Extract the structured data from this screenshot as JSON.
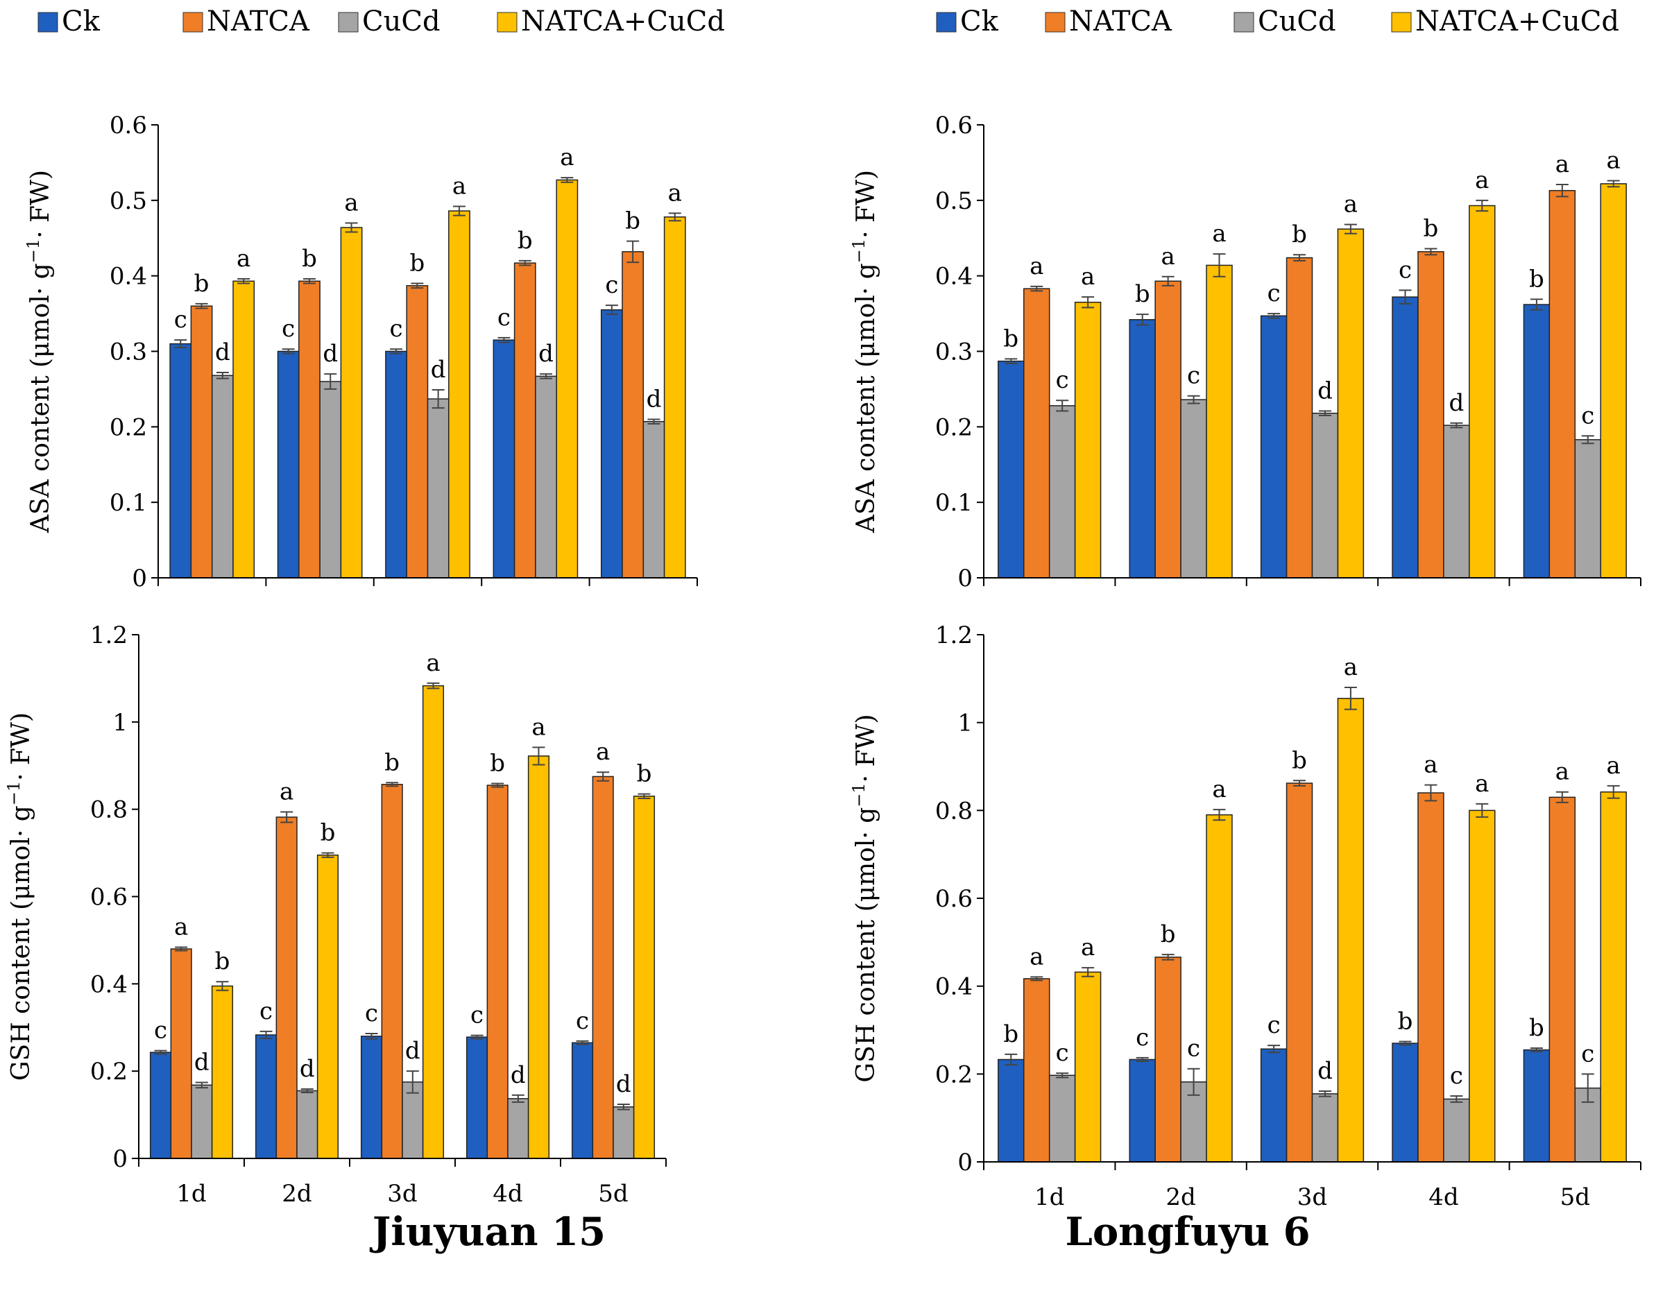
{
  "legend": {
    "items": [
      {
        "label": "Ck",
        "color": "#1f5fbf"
      },
      {
        "label": "NATCA",
        "color": "#f07e26"
      },
      {
        "label": "CuCd",
        "color": "#a5a5a5"
      },
      {
        "label": "NATCA+CuCd",
        "color": "#ffc000"
      }
    ]
  },
  "cultivars": [
    "Jiuyuan 15",
    "Longfuyu 6"
  ],
  "chart_data": [
    {
      "type": "bar",
      "cultivar": "Jiuyuan 15",
      "title": "",
      "xlabel": "",
      "ylabel_parts": [
        "ASA content (μmol· g",
        "−1",
        "· FW)"
      ],
      "ylim": [
        0,
        0.6
      ],
      "yticks": [
        "0",
        "0.1",
        "0.2",
        "0.3",
        "0.4",
        "0.5",
        "0.6"
      ],
      "categories": [
        "1d",
        "2d",
        "3d",
        "4d",
        "5d"
      ],
      "series": [
        {
          "name": "Ck",
          "values": [
            0.31,
            0.3,
            0.3,
            0.315,
            0.355
          ],
          "errors": [
            0.005,
            0.003,
            0.003,
            0.003,
            0.006
          ],
          "letters": [
            "c",
            "c",
            "c",
            "c",
            "c"
          ]
        },
        {
          "name": "NATCA",
          "values": [
            0.36,
            0.393,
            0.387,
            0.417,
            0.432
          ],
          "errors": [
            0.003,
            0.003,
            0.003,
            0.003,
            0.014
          ],
          "letters": [
            "b",
            "b",
            "b",
            "b",
            "b"
          ]
        },
        {
          "name": "CuCd",
          "values": [
            0.268,
            0.26,
            0.237,
            0.267,
            0.207
          ],
          "errors": [
            0.004,
            0.01,
            0.012,
            0.003,
            0.003
          ],
          "letters": [
            "d",
            "d",
            "d",
            "d",
            "d"
          ]
        },
        {
          "name": "NATCA+CuCd",
          "values": [
            0.393,
            0.464,
            0.486,
            0.527,
            0.478
          ],
          "errors": [
            0.003,
            0.006,
            0.006,
            0.003,
            0.005
          ],
          "letters": [
            "a",
            "a",
            "a",
            "a",
            "a"
          ]
        }
      ]
    },
    {
      "type": "bar",
      "cultivar": "Longfuyu 6",
      "title": "",
      "xlabel": "",
      "ylabel_parts": [
        "ASA content (μmol· g",
        "−1",
        "· FW)"
      ],
      "ylim": [
        0,
        0.6
      ],
      "yticks": [
        "0",
        "0.1",
        "0.2",
        "0.3",
        "0.4",
        "0.5",
        "0.6"
      ],
      "categories": [
        "1d",
        "2d",
        "3d",
        "4d",
        "5d"
      ],
      "series": [
        {
          "name": "Ck",
          "values": [
            0.287,
            0.342,
            0.347,
            0.372,
            0.362
          ],
          "errors": [
            0.003,
            0.007,
            0.003,
            0.009,
            0.007
          ],
          "letters": [
            "b",
            "b",
            "c",
            "c",
            "b"
          ]
        },
        {
          "name": "NATCA",
          "values": [
            0.383,
            0.393,
            0.424,
            0.432,
            0.513
          ],
          "errors": [
            0.003,
            0.006,
            0.004,
            0.004,
            0.008
          ],
          "letters": [
            "a",
            "a",
            "b",
            "b",
            "a"
          ]
        },
        {
          "name": "CuCd",
          "values": [
            0.228,
            0.236,
            0.218,
            0.202,
            0.183
          ],
          "errors": [
            0.007,
            0.005,
            0.003,
            0.003,
            0.005
          ],
          "letters": [
            "c",
            "c",
            "d",
            "d",
            "c"
          ]
        },
        {
          "name": "NATCA+CuCd",
          "values": [
            0.365,
            0.414,
            0.462,
            0.493,
            0.522
          ],
          "errors": [
            0.007,
            0.015,
            0.006,
            0.007,
            0.004
          ],
          "letters": [
            "a",
            "a",
            "a",
            "a",
            "a"
          ]
        }
      ]
    },
    {
      "type": "bar",
      "cultivar": "Jiuyuan 15",
      "title": "",
      "xlabel": "",
      "ylabel_parts": [
        "GSH content (μmol· g",
        "−1",
        "· FW)"
      ],
      "ylim": [
        0,
        1.2
      ],
      "yticks": [
        "0",
        "0.2",
        "0.4",
        "0.6",
        "0.8",
        "1",
        "1.2"
      ],
      "categories": [
        "1d",
        "2d",
        "3d",
        "4d",
        "5d"
      ],
      "series": [
        {
          "name": "Ck",
          "values": [
            0.243,
            0.283,
            0.28,
            0.278,
            0.265
          ],
          "errors": [
            0.004,
            0.008,
            0.006,
            0.004,
            0.004
          ],
          "letters": [
            "c",
            "c",
            "c",
            "c",
            "c"
          ]
        },
        {
          "name": "NATCA",
          "values": [
            0.48,
            0.782,
            0.857,
            0.855,
            0.875
          ],
          "errors": [
            0.004,
            0.012,
            0.004,
            0.004,
            0.01
          ],
          "letters": [
            "a",
            "a",
            "b",
            "b",
            "a"
          ]
        },
        {
          "name": "CuCd",
          "values": [
            0.168,
            0.155,
            0.175,
            0.137,
            0.118
          ],
          "errors": [
            0.006,
            0.004,
            0.025,
            0.008,
            0.006
          ],
          "letters": [
            "d",
            "d",
            "d",
            "d",
            "d"
          ]
        },
        {
          "name": "NATCA+CuCd",
          "values": [
            0.395,
            0.695,
            1.083,
            0.922,
            0.83
          ],
          "errors": [
            0.01,
            0.005,
            0.006,
            0.02,
            0.005
          ],
          "letters": [
            "b",
            "b",
            "a",
            "a",
            "b"
          ]
        }
      ]
    },
    {
      "type": "bar",
      "cultivar": "Longfuyu 6",
      "title": "",
      "xlabel": "",
      "ylabel_parts": [
        "GSH content (μmol· g",
        "−1",
        "· FW)"
      ],
      "ylim": [
        0,
        1.2
      ],
      "yticks": [
        "0",
        "0.2",
        "0.4",
        "0.6",
        "0.8",
        "1",
        "1.2"
      ],
      "categories": [
        "1d",
        "2d",
        "3d",
        "4d",
        "5d"
      ],
      "series": [
        {
          "name": "Ck",
          "values": [
            0.233,
            0.233,
            0.257,
            0.27,
            0.255
          ],
          "errors": [
            0.012,
            0.004,
            0.008,
            0.004,
            0.004
          ],
          "letters": [
            "b",
            "c",
            "c",
            "b",
            "b"
          ]
        },
        {
          "name": "NATCA",
          "values": [
            0.417,
            0.466,
            0.862,
            0.84,
            0.83
          ],
          "errors": [
            0.004,
            0.006,
            0.006,
            0.018,
            0.012
          ],
          "letters": [
            "a",
            "b",
            "b",
            "a",
            "a"
          ]
        },
        {
          "name": "CuCd",
          "values": [
            0.197,
            0.182,
            0.155,
            0.143,
            0.168
          ],
          "errors": [
            0.005,
            0.03,
            0.006,
            0.007,
            0.032
          ],
          "letters": [
            "c",
            "c",
            "d",
            "c",
            "c"
          ]
        },
        {
          "name": "NATCA+CuCd",
          "values": [
            0.432,
            0.79,
            1.055,
            0.8,
            0.842
          ],
          "errors": [
            0.01,
            0.012,
            0.025,
            0.015,
            0.014
          ],
          "letters": [
            "a",
            "a",
            "a",
            "a",
            "a"
          ]
        }
      ]
    }
  ]
}
